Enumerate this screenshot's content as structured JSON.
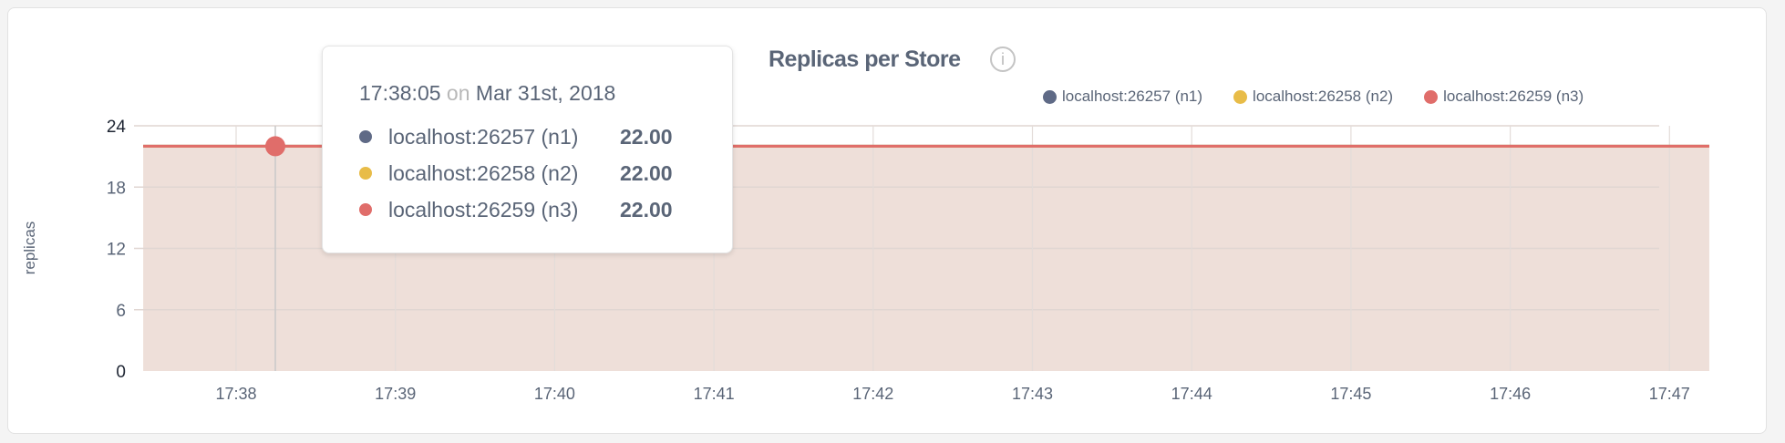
{
  "chart_data": {
    "type": "area",
    "title": "Replicas per Store",
    "info_icon": "info-circle-icon",
    "ylabel": "replicas",
    "ylim": [
      0,
      24
    ],
    "yticks": [
      0,
      6,
      12,
      18,
      24
    ],
    "xlim": [
      "17:37:25",
      "17:47:15"
    ],
    "xticks": [
      "17:38",
      "17:39",
      "17:40",
      "17:41",
      "17:42",
      "17:43",
      "17:44",
      "17:45",
      "17:46",
      "17:47"
    ],
    "grid": true,
    "legend_placement": "top-right",
    "series": [
      {
        "name": "localhost:26257 (n1)",
        "color": "#5f6a86",
        "x": [
          "17:37:25",
          "17:47:15"
        ],
        "values": [
          22,
          22
        ]
      },
      {
        "name": "localhost:26258 (n2)",
        "color": "#e8bc48",
        "x": [
          "17:37:25",
          "17:47:15"
        ],
        "values": [
          22,
          22
        ]
      },
      {
        "name": "localhost:26259 (n3)",
        "color": "#e06d6a",
        "x": [
          "17:37:25",
          "17:47:15"
        ],
        "values": [
          22,
          22
        ]
      }
    ],
    "fill_color": "#eedfd9",
    "tooltip": {
      "time": "17:38:05",
      "on": "on",
      "date": "Mar 31st, 2018",
      "rows": [
        {
          "name": "localhost:26257 (n1)",
          "value": "22.00"
        },
        {
          "name": "localhost:26258 (n2)",
          "value": "22.00"
        },
        {
          "name": "localhost:26259 (n3)",
          "value": "22.00"
        }
      ]
    }
  }
}
